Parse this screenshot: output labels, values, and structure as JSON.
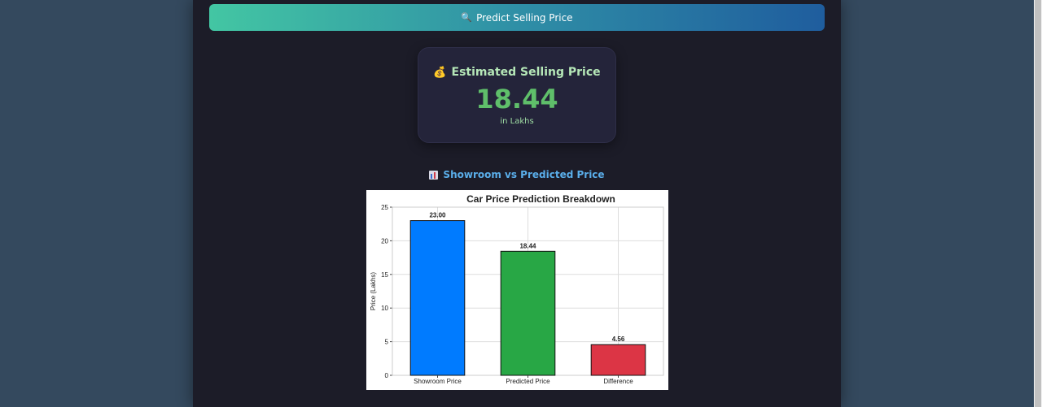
{
  "predict_button": {
    "label": "Predict Selling Price",
    "icon": "magnifier-icon"
  },
  "result": {
    "title": "Estimated Selling Price",
    "icon": "money-bag-icon",
    "value": "18.44",
    "unit": "in Lakhs"
  },
  "chart_section": {
    "title": "Showroom vs Predicted Price",
    "icon": "bar-chart-icon"
  },
  "chart_data": {
    "type": "bar",
    "title": "Car Price Prediction Breakdown",
    "xlabel": "",
    "ylabel": "Price (Lakhs)",
    "categories": [
      "Showroom Price",
      "Predicted Price",
      "Difference"
    ],
    "values": [
      23.0,
      18.44,
      4.56
    ],
    "value_labels": [
      "23.00",
      "18.44",
      "4.56"
    ],
    "colors": [
      "#007bff",
      "#28a745",
      "#dc3545"
    ],
    "ylim": [
      0,
      25
    ],
    "yticks": [
      0,
      5,
      10,
      15,
      20,
      25
    ],
    "grid": true,
    "legend": "none"
  }
}
